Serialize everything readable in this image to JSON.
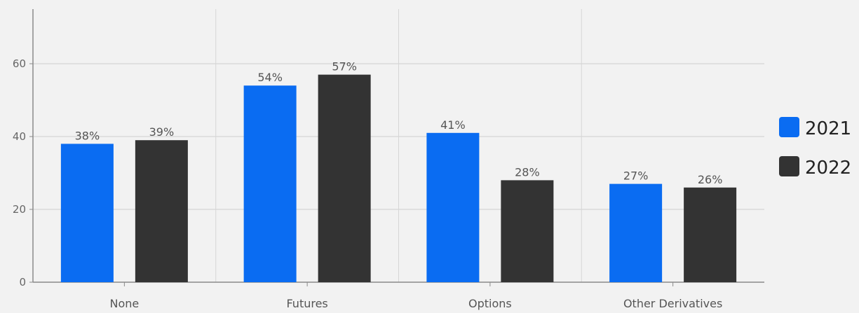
{
  "chart_data": {
    "type": "bar",
    "categories": [
      "None",
      "Futures",
      "Options",
      "Other Derivatives"
    ],
    "series": [
      {
        "name": "2021",
        "values": [
          38,
          54,
          41,
          27
        ],
        "labels": [
          "38%",
          "54%",
          "41%",
          "27%"
        ],
        "color": "#0a6cf2"
      },
      {
        "name": "2022",
        "values": [
          39,
          57,
          28,
          26
        ],
        "labels": [
          "39%",
          "57%",
          "28%",
          "26%"
        ],
        "color": "#333333"
      }
    ],
    "yticks": [
      0,
      20,
      40,
      60
    ],
    "ytick_labels": [
      "0",
      "20",
      "40",
      "60"
    ],
    "ylim": [
      0,
      75
    ],
    "grid": true,
    "legend": "right",
    "title": "",
    "xlabel": "",
    "ylabel": ""
  }
}
